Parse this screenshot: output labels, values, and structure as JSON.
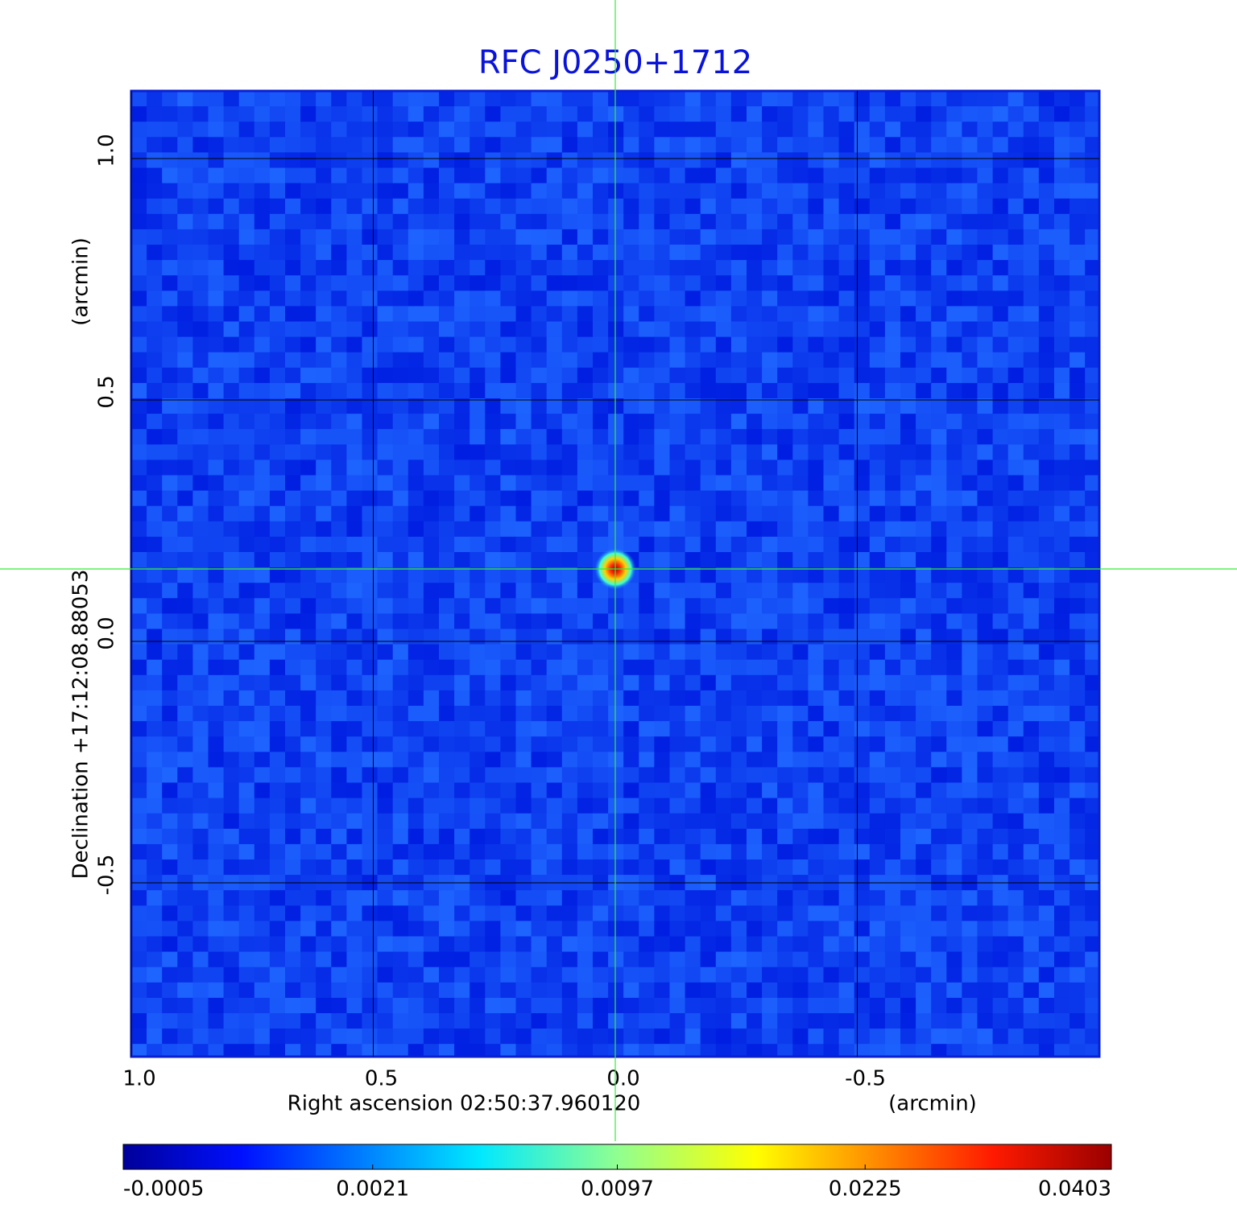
{
  "chart_data": {
    "type": "image",
    "title": "RFC J0250+1712",
    "x_label": "Right ascension  02:50:37.960120",
    "x_unit": "(arcmin)",
    "y_label": "Declination  +17:12:08.88053",
    "y_unit": "(arcmin)",
    "xlim": [
      1.0,
      -1.0
    ],
    "ylim": [
      -0.86,
      1.14
    ],
    "xticks": [
      {
        "value": 1.0,
        "label": "1.0"
      },
      0.5,
      {
        "value": 0.0,
        "label": "0.0"
      },
      -0.5
    ],
    "yticks": [
      {
        "value": 1.0,
        "label": "1.0"
      },
      0.5,
      {
        "value": 0.0,
        "label": "0.0"
      },
      -0.5
    ],
    "grid": true,
    "crosshair": {
      "x": 0,
      "y": 0.15,
      "color": "#33ee33"
    },
    "colormap": "jet",
    "colorbar_scale": "sqrt",
    "clim": [
      -0.0005,
      0.0403
    ],
    "colorbar_ticks": [
      -0.0005,
      0.0021,
      0.0097,
      0.0225,
      0.0403
    ]
  }
}
